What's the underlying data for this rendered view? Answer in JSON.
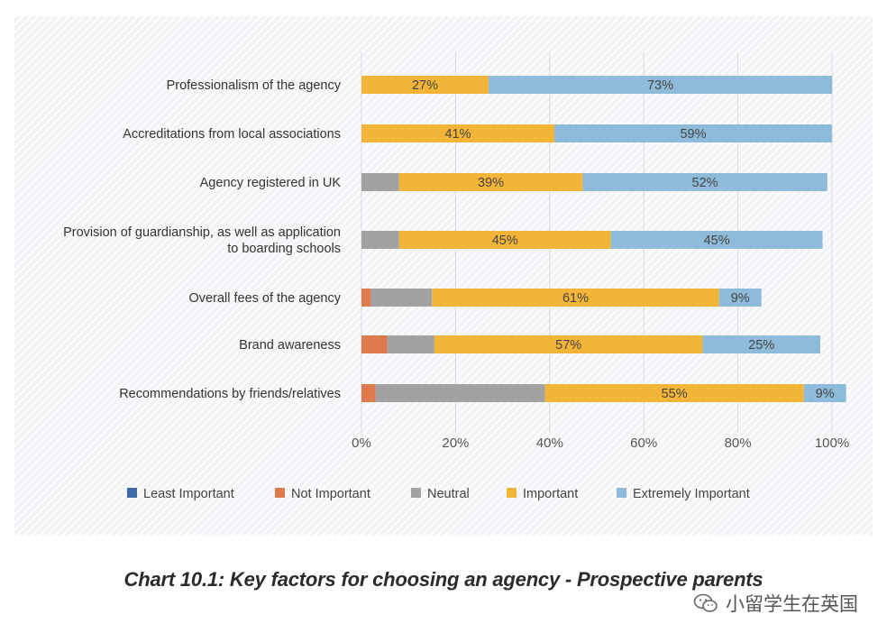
{
  "chart_data": {
    "type": "bar",
    "orientation": "horizontal",
    "stacked": true,
    "title": "Chart 10.1: Key factors for choosing an agency - Prospective parents",
    "categories": [
      "Professionalism of the agency",
      "Accreditations from local associations",
      "Agency registered in UK",
      "Provision of guardianship, as well as application to boarding schools",
      "Overall fees of the agency",
      "Brand awareness",
      "Recommendations by friends/relatives"
    ],
    "category_lines": [
      [
        "Professionalism of the agency"
      ],
      [
        "Accreditations from local associations"
      ],
      [
        "Agency registered in UK"
      ],
      [
        "Provision of guardianship, as well as application",
        "to boarding schools"
      ],
      [
        "Overall fees of the agency"
      ],
      [
        "Brand awareness"
      ],
      [
        "Recommendations by friends/relatives"
      ]
    ],
    "series": [
      {
        "name": "Least Important",
        "color": "#3e6aa8",
        "values": [
          0,
          0,
          0,
          0,
          0,
          0,
          0
        ],
        "labels": [
          "",
          "",
          "",
          "",
          "",
          "",
          ""
        ]
      },
      {
        "name": "Not Important",
        "color": "#de7a4d",
        "values": [
          0,
          0,
          0,
          0,
          2,
          5.5,
          3
        ],
        "labels": [
          "",
          "",
          "",
          "",
          "",
          "",
          ""
        ]
      },
      {
        "name": "Neutral",
        "color": "#a2a2a4",
        "values": [
          0,
          0,
          8,
          8,
          13,
          10,
          36
        ],
        "labels": [
          "",
          "",
          "",
          "",
          "",
          "",
          ""
        ]
      },
      {
        "name": "Important",
        "color": "#f3b537",
        "values": [
          27,
          41,
          39,
          45,
          61,
          57,
          55
        ],
        "labels": [
          "27%",
          "41%",
          "39%",
          "45%",
          "61%",
          "57%",
          "55%"
        ]
      },
      {
        "name": "Extremely Important",
        "color": "#8ebbd9",
        "values": [
          73,
          59,
          52,
          45,
          9,
          25,
          9
        ],
        "labels": [
          "73%",
          "59%",
          "52%",
          "45%",
          "9%",
          "25%",
          "9%"
        ]
      }
    ],
    "x_ticks": [
      "0%",
      "20%",
      "40%",
      "60%",
      "80%",
      "100%"
    ],
    "xlim": [
      0,
      100
    ],
    "grid": true,
    "legend_position": "bottom",
    "xlabel": "",
    "ylabel": ""
  },
  "caption": "Chart 10.1: Key factors for choosing an agency - Prospective parents",
  "watermark": {
    "text": "小留学生在英国",
    "icon": "wechat-icon"
  }
}
